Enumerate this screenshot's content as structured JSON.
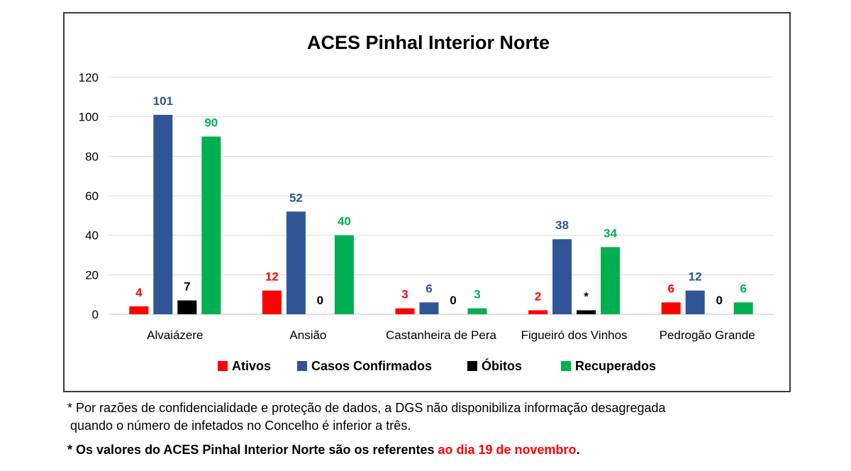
{
  "chart_data": {
    "type": "bar",
    "title": "ACES Pinhal Interior Norte",
    "categories": [
      "Alvaiázere",
      "Ansião",
      "Castanheira de Pera",
      "Figueiró dos Vinhos",
      "Pedrogão Grande"
    ],
    "ylim": [
      0,
      120
    ],
    "yticks": [
      0,
      20,
      40,
      60,
      80,
      100,
      120
    ],
    "grid": true,
    "legend_position": "bottom",
    "series": [
      {
        "name": "Ativos",
        "color": "#ff0000",
        "values": [
          4,
          12,
          3,
          2,
          6
        ],
        "labels": [
          "4",
          "12",
          "3",
          "2",
          "6"
        ]
      },
      {
        "name": "Casos Confirmados",
        "color": "#2f5597",
        "values": [
          101,
          52,
          6,
          38,
          12
        ],
        "labels": [
          "101",
          "52",
          "6",
          "38",
          "12"
        ]
      },
      {
        "name": "Óbitos",
        "color": "#000000",
        "values": [
          7,
          0,
          0,
          2,
          0
        ],
        "labels": [
          "7",
          "0",
          "0",
          "*",
          "0"
        ]
      },
      {
        "name": "Recuperados",
        "color": "#00b050",
        "values": [
          90,
          40,
          3,
          34,
          6
        ],
        "labels": [
          "90",
          "40",
          "3",
          "34",
          "6"
        ]
      }
    ]
  },
  "notes": {
    "line1": "* Por razões de confidencialidade e proteção de dados, a DGS não disponibiliza informação desagregada",
    "line2": "quando o número de infetados no Concelho é inferior a três.",
    "line3_prefix": "* Os valores do ACES Pinhal Interior Norte são os referentes ",
    "line3_highlight": "ao dia 19 de novembro",
    "line3_suffix": ".",
    "highlight_color": "#ff0000"
  }
}
